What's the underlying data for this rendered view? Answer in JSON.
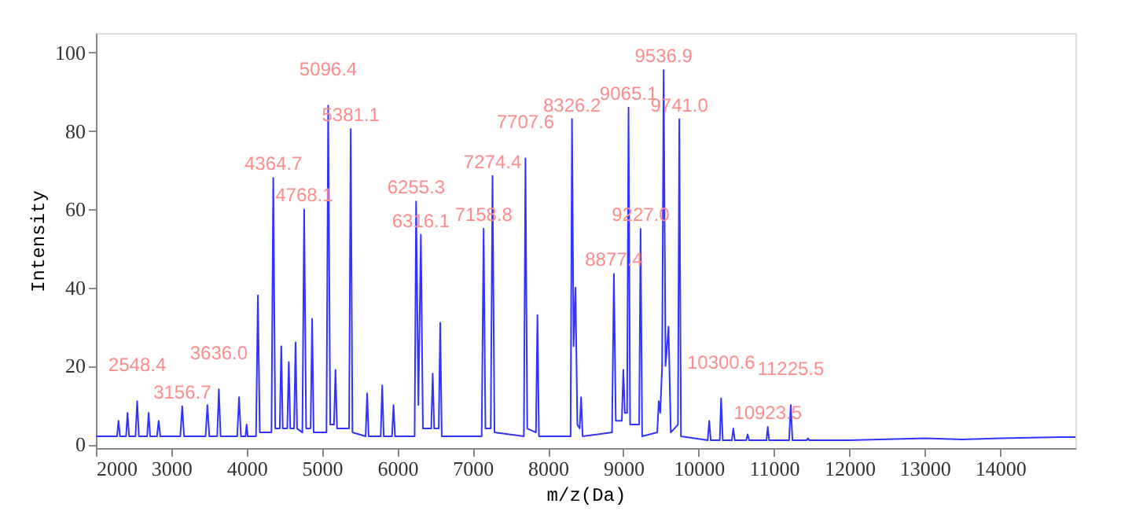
{
  "chart_data": {
    "type": "line",
    "xlabel": "m/z(Da)",
    "ylabel": "Intensity",
    "x": [
      2000,
      2280,
      2300,
      2320,
      2400,
      2420,
      2440,
      2525,
      2548,
      2570,
      2680,
      2700,
      2720,
      2810,
      2833,
      2855,
      3120,
      3146,
      3170,
      3455,
      3480,
      3505,
      3610,
      3632,
      3655,
      3875,
      3900,
      3925,
      3985,
      4000,
      4015,
      4125,
      4150,
      4175,
      4330,
      4354,
      4380,
      4440,
      4460,
      4480,
      4540,
      4560,
      4580,
      4630,
      4650,
      4670,
      4740,
      4764,
      4790,
      4850,
      4870,
      4890,
      5060,
      5083,
      5110,
      5160,
      5180,
      5200,
      5360,
      5382,
      5405,
      5580,
      5600,
      5620,
      5780,
      5800,
      5820,
      5930,
      5950,
      5970,
      6230,
      6250,
      6280,
      6313,
      6340,
      6450,
      6470,
      6490,
      6550,
      6570,
      6590,
      7120,
      7146,
      7170,
      7240,
      7264,
      7290,
      7680,
      7701,
      7725,
      7840,
      7860,
      7880,
      8300,
      8319,
      8340,
      8365,
      8390,
      8420,
      8440,
      8460,
      8850,
      8875,
      8900,
      8980,
      9000,
      9020,
      9050,
      9069,
      9090,
      9210,
      9229,
      9250,
      9450,
      9470,
      9490,
      9515,
      9535,
      9560,
      9600,
      9630,
      9725,
      9743,
      9765,
      10120,
      10140,
      10160,
      10280,
      10298,
      10320,
      10440,
      10460,
      10480,
      10630,
      10650,
      10670,
      10900,
      10917,
      10935,
      11200,
      11222,
      11245,
      11430,
      11450,
      11470,
      12000,
      13000,
      13500,
      14000,
      14800,
      15000
    ],
    "series": [
      {
        "color": "#3333ff",
        "values": [
          2,
          2,
          6,
          2,
          2,
          8,
          2,
          2,
          11,
          2,
          2,
          8,
          2,
          2,
          6,
          2,
          2,
          9.7,
          2,
          2,
          10,
          2,
          2,
          14,
          2,
          2,
          12,
          2,
          2,
          5,
          2,
          2,
          38,
          3,
          3,
          68,
          4,
          4,
          25,
          4,
          4,
          21,
          4,
          4,
          26,
          4,
          3,
          60,
          4,
          4,
          32,
          3,
          3,
          86.5,
          5,
          5,
          19,
          4,
          4,
          80.5,
          3,
          2,
          13,
          2,
          2,
          15,
          2,
          2,
          10,
          2,
          2,
          62,
          10,
          53.5,
          4,
          4,
          18,
          4,
          4,
          31,
          2,
          2,
          55,
          4,
          4,
          68.5,
          3,
          2,
          73,
          4,
          3,
          33,
          2,
          2,
          83,
          25,
          40,
          5,
          4,
          12,
          2,
          3,
          43.5,
          6,
          6,
          19,
          8,
          8,
          86,
          5,
          5,
          55,
          2,
          3,
          11,
          8,
          20,
          95.5,
          20,
          30,
          3,
          5,
          83,
          2,
          1,
          6,
          1,
          1,
          11.7,
          1,
          1,
          4,
          1,
          1,
          2.5,
          1,
          1,
          4.4,
          1,
          1,
          10,
          1,
          1,
          1.5,
          1,
          1,
          1.5,
          1.2,
          1.5,
          1.8,
          1.8
        ]
      }
    ],
    "xlim": [
      2000,
      15000
    ],
    "xticks": [
      2000,
      3000,
      4000,
      5000,
      6000,
      7000,
      8000,
      9000,
      10000,
      11000,
      12000,
      13000,
      14000
    ],
    "ylim": [
      -1,
      105
    ],
    "yticks": [
      0,
      20,
      40,
      60,
      80,
      100
    ],
    "annotations": [
      {
        "text": "2548.4",
        "x": 2548,
        "y": 11
      },
      {
        "text": "3156.7",
        "x": 3146,
        "y": 9.7
      },
      {
        "text": "3636.0",
        "x": 3632,
        "y": 14
      },
      {
        "text": "4364.7",
        "x": 4354,
        "y": 68
      },
      {
        "text": "4768.1",
        "x": 4764,
        "y": 60
      },
      {
        "text": "5096.4",
        "x": 5083,
        "y": 86.5
      },
      {
        "text": "5381.1",
        "x": 5382,
        "y": 80.5
      },
      {
        "text": "6255.3",
        "x": 6250,
        "y": 62
      },
      {
        "text": "6316.1",
        "x": 6313,
        "y": 53.5
      },
      {
        "text": "7158.8",
        "x": 7146,
        "y": 55
      },
      {
        "text": "7274.4",
        "x": 7264,
        "y": 68.5
      },
      {
        "text": "7707.6",
        "x": 7701,
        "y": 73
      },
      {
        "text": "8326.2",
        "x": 8319,
        "y": 83
      },
      {
        "text": "8877.4",
        "x": 8875,
        "y": 43.5
      },
      {
        "text": "9065.1",
        "x": 9069,
        "y": 86
      },
      {
        "text": "9227.0",
        "x": 9229,
        "y": 55
      },
      {
        "text": "9536.9",
        "x": 9535,
        "y": 95.5
      },
      {
        "text": "9741.0",
        "x": 9743,
        "y": 83
      },
      {
        "text": "10300.6",
        "x": 10298,
        "y": 11.7
      },
      {
        "text": "10923.5",
        "x": 10917,
        "y": 4.4
      },
      {
        "text": "11225.5",
        "x": 11222,
        "y": 10
      }
    ]
  }
}
